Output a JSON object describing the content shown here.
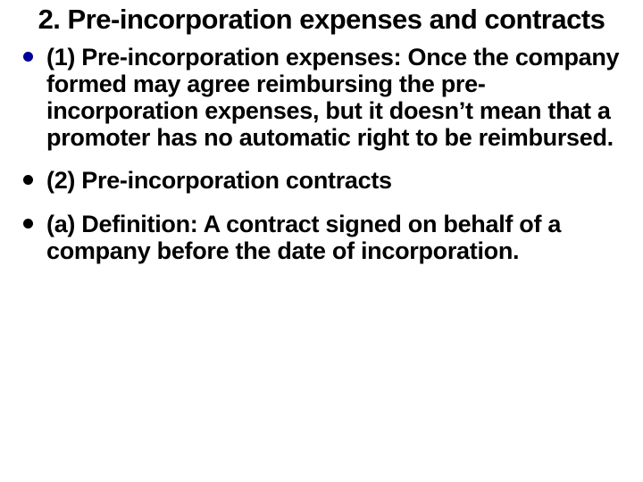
{
  "background_color": "#ffffff",
  "text_color": "#000000",
  "title": "2. Pre-incorporation expenses and contracts",
  "title_fontsize": 31,
  "body_fontsize": 27,
  "font_weight": 900,
  "font_family": "Arial, Helvetica, sans-serif",
  "bullets": [
    {
      "text": "(1) Pre-incorporation expenses: Once the company formed may agree reimbursing the pre-incorporation expenses, but it doesn’t mean that a promoter has no automatic right to be reimbursed.",
      "marker_color": "#000099"
    },
    {
      "text": "(2) Pre-incorporation contracts",
      "marker_color": "#000000"
    },
    {
      "text": "(a) Definition: A contract signed on behalf of a company before the date of incorporation.",
      "marker_color": "#000000"
    }
  ]
}
